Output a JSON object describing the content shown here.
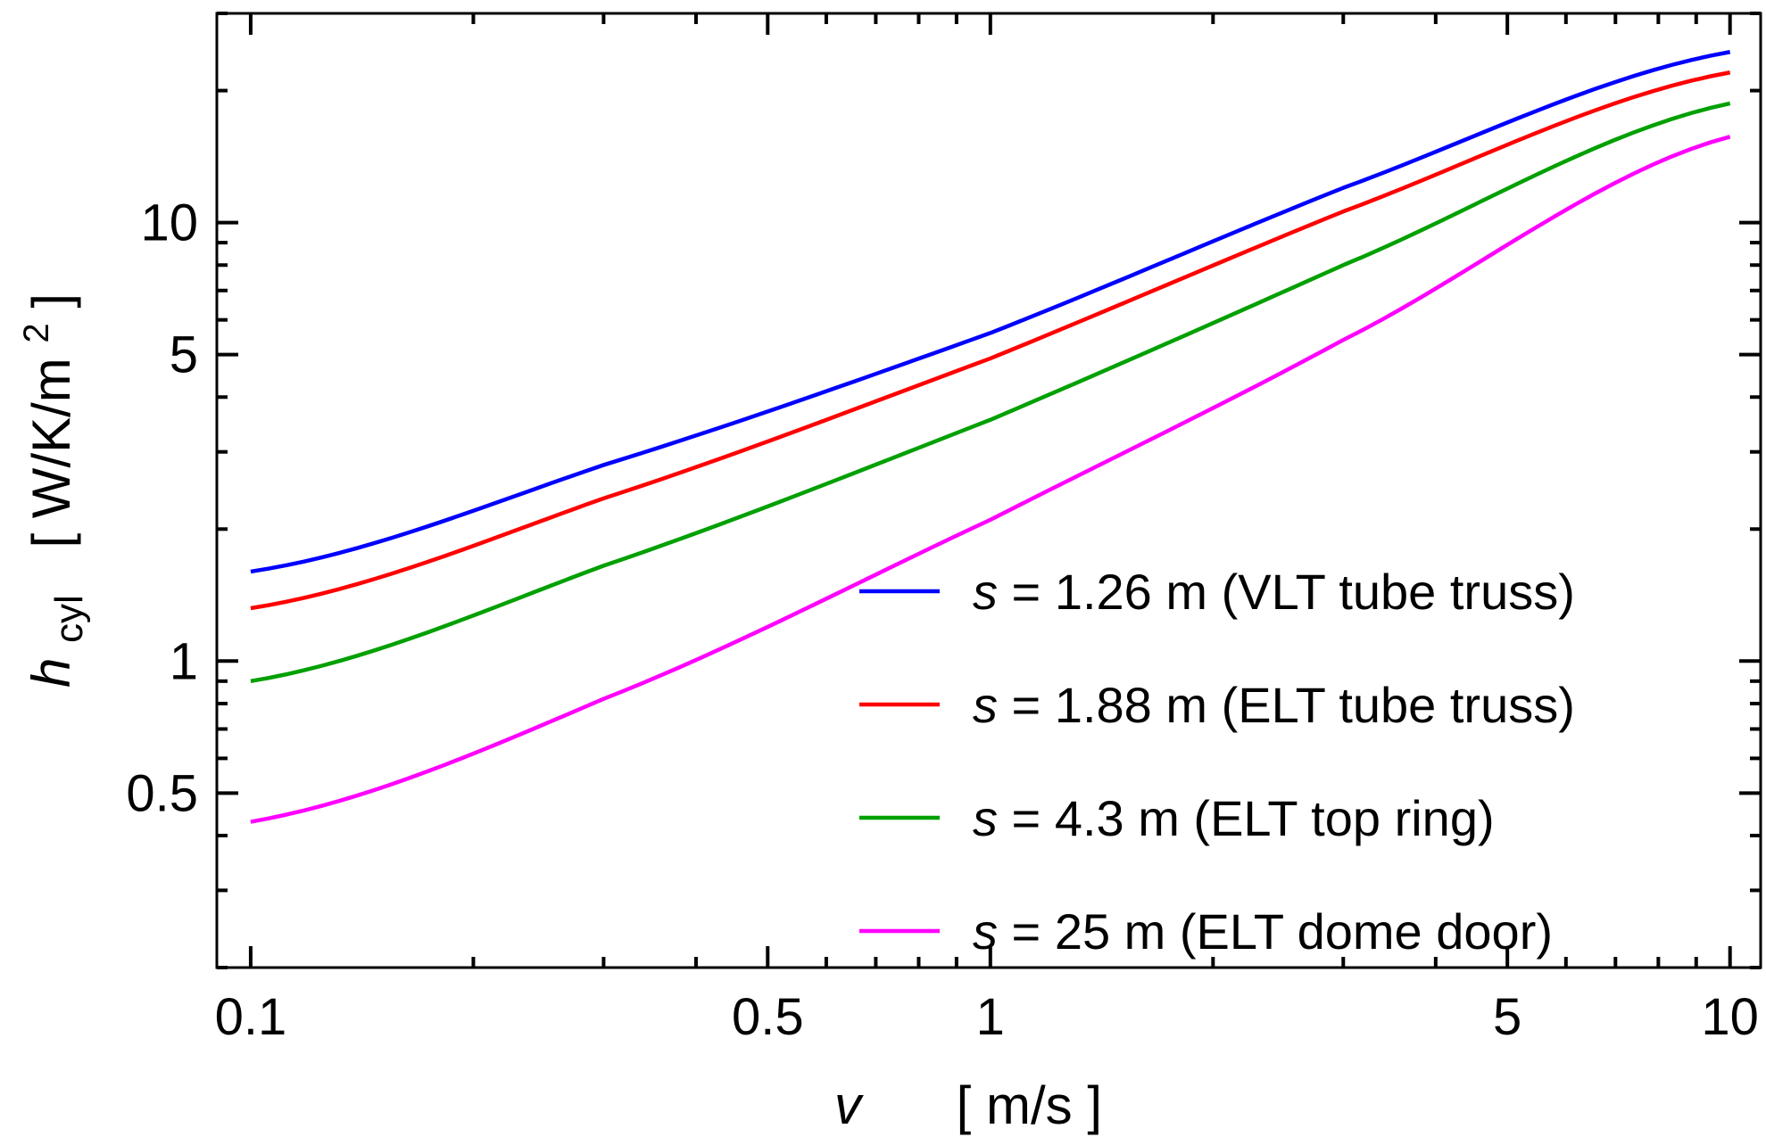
{
  "chart_data": {
    "type": "line",
    "x_scale": "log",
    "y_scale": "log",
    "xlim": [
      0.09,
      11
    ],
    "ylim": [
      0.2,
      30
    ],
    "xticks_major": [
      0.1,
      0.5,
      1,
      5,
      10
    ],
    "xtick_labels": [
      "0.1",
      "0.5",
      "1",
      "5",
      "10"
    ],
    "yticks_major": [
      0.5,
      1,
      5,
      10
    ],
    "ytick_labels": [
      "0.5",
      "1",
      "5",
      "10"
    ],
    "xlabel": {
      "var": "v",
      "unit": "[ m/s ]"
    },
    "ylabel": {
      "var": "h",
      "sub": "cyl",
      "unit": "[ W/K/m",
      "sup": "2",
      "close": " ]"
    },
    "legend_position": "bottom-right",
    "series": [
      {
        "name": "s = 1.26 m (VLT tube truss)",
        "var": "s",
        "rest": " = 1.26 m (VLT tube truss)",
        "color": "#0000ff",
        "x": [
          0.1,
          0.3,
          1,
          3,
          10
        ],
        "values": [
          1.6,
          2.8,
          5.6,
          12.0,
          24.5
        ]
      },
      {
        "name": "s = 1.88 m (ELT tube truss)",
        "var": "s",
        "rest": " = 1.88 m (ELT tube truss)",
        "color": "#ff0000",
        "x": [
          0.1,
          0.3,
          1,
          3,
          10
        ],
        "values": [
          1.32,
          2.35,
          4.9,
          10.6,
          22.0
        ]
      },
      {
        "name": "s = 4.3 m (ELT top ring)",
        "var": "s",
        "rest": " = 4.3 m (ELT top ring)",
        "color": "#00a000",
        "x": [
          0.1,
          0.3,
          1,
          3,
          10
        ],
        "values": [
          0.9,
          1.65,
          3.55,
          8.0,
          18.7
        ]
      },
      {
        "name": "s = 25 m (ELT dome door)",
        "var": "s",
        "rest": " = 25 m (ELT dome door)",
        "color": "#ff00ff",
        "x": [
          0.1,
          0.3,
          1,
          3,
          10
        ],
        "values": [
          0.43,
          0.82,
          2.1,
          5.4,
          15.7
        ]
      }
    ]
  }
}
